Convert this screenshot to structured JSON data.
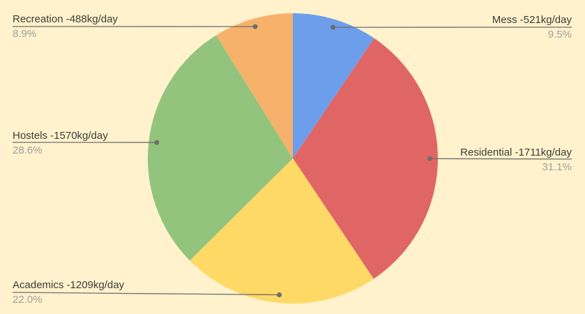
{
  "background_color": "#FFF2CC",
  "callout_line_color": "#6e6e6e",
  "label_text_color": "#3c3c3c",
  "percent_text_color": "#9e9e9e",
  "chart_data": {
    "type": "pie",
    "title": "",
    "categories": [
      "Mess",
      "Residential",
      "Academics",
      "Hostels",
      "Recreation"
    ],
    "values": [
      521,
      1711,
      1209,
      1570,
      488
    ],
    "unit": "kg/day",
    "percents": [
      9.5,
      31.1,
      22.0,
      28.6,
      8.9
    ],
    "slice_labels": [
      "Mess -521kg/day",
      "Residential -1711kg/day",
      "Academics -1209kg/day",
      "Hostels -1570kg/day",
      "Recreation -488kg/day"
    ],
    "percent_labels": [
      "9.5%",
      "31.1%",
      "22.0%",
      "28.6%",
      "8.9%"
    ],
    "colors": [
      "#6D9EEB",
      "#E06666",
      "#FFD966",
      "#93C47D",
      "#F6B26B"
    ],
    "start_angle_deg": 0,
    "direction": "clockwise",
    "legend_position": "none",
    "label_style": "outside-callout"
  }
}
